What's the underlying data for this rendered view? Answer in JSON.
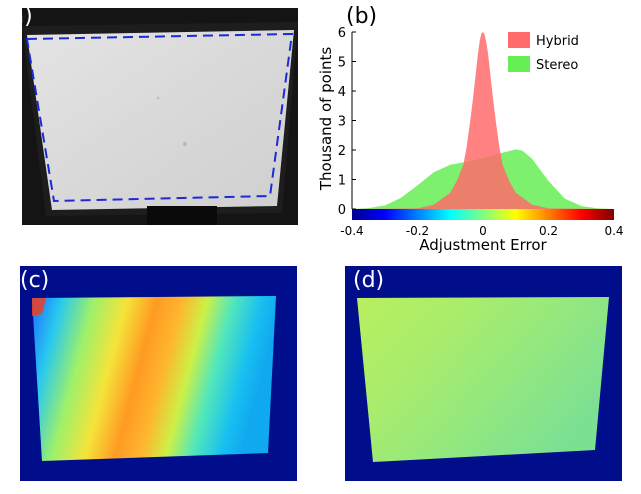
{
  "panels": {
    "a": {
      "label": "(a)"
    },
    "b": {
      "label": "(b)"
    },
    "c": {
      "label": "(c)"
    },
    "d": {
      "label": "(d)"
    }
  },
  "colors": {
    "hybrid": "#ff6b6b",
    "stereo": "#66ee55",
    "dashed_outline": "#1a2bd6",
    "map_background": "#000e8c"
  },
  "chart_data": {
    "type": "area",
    "xlabel": "Adjustment Error",
    "ylabel": "Thousand of points",
    "xlim": [
      -0.4,
      0.4
    ],
    "ylim": [
      0,
      6
    ],
    "xticks": [
      "-0.4",
      "-0.2",
      "0",
      "0.2",
      "0.4"
    ],
    "yticks": [
      "0",
      "1",
      "2",
      "3",
      "4",
      "5",
      "6"
    ],
    "legend_position": "top-right",
    "colorbar": "jet",
    "series": [
      {
        "name": "Hybrid",
        "color": "#ff6b6b",
        "x": [
          -0.4,
          -0.2,
          -0.15,
          -0.1,
          -0.08,
          -0.06,
          -0.05,
          -0.04,
          -0.03,
          -0.02,
          -0.015,
          -0.01,
          -0.005,
          0,
          0.005,
          0.01,
          0.015,
          0.02,
          0.03,
          0.04,
          0.05,
          0.06,
          0.08,
          0.1,
          0.15,
          0.2,
          0.4
        ],
        "y": [
          0,
          0.02,
          0.15,
          0.55,
          0.95,
          1.5,
          2.1,
          2.9,
          3.8,
          4.8,
          5.3,
          5.7,
          5.95,
          6.0,
          5.9,
          5.65,
          5.3,
          4.8,
          3.8,
          2.9,
          2.1,
          1.5,
          0.95,
          0.55,
          0.15,
          0.02,
          0
        ]
      },
      {
        "name": "Stereo",
        "color": "#66ee55",
        "x": [
          -0.4,
          -0.35,
          -0.3,
          -0.25,
          -0.2,
          -0.15,
          -0.1,
          -0.05,
          0,
          0.05,
          0.1,
          0.12,
          0.15,
          0.2,
          0.25,
          0.3,
          0.35,
          0.4
        ],
        "y": [
          0,
          0.03,
          0.12,
          0.38,
          0.8,
          1.25,
          1.5,
          1.6,
          1.72,
          1.88,
          2.02,
          1.98,
          1.7,
          0.95,
          0.35,
          0.1,
          0.02,
          0
        ]
      }
    ]
  }
}
